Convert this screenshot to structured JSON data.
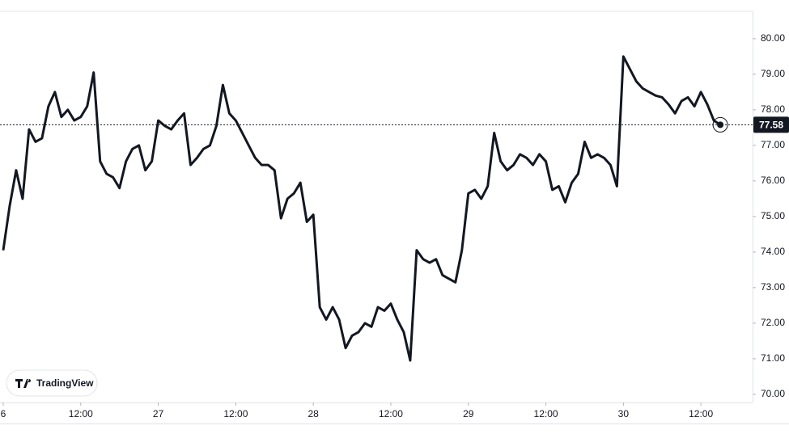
{
  "chart_data": {
    "type": "line",
    "x": [
      0,
      1,
      2,
      3,
      4,
      5,
      6,
      7,
      8,
      9,
      10,
      11,
      12,
      13,
      14,
      15,
      16,
      17,
      18,
      19,
      20,
      21,
      22,
      23,
      24,
      25,
      26,
      27,
      28,
      29,
      30,
      31,
      32,
      33,
      34,
      35,
      36,
      37,
      38,
      39,
      40,
      41,
      42,
      43,
      44,
      45,
      46,
      47,
      48,
      49,
      50,
      51,
      52,
      53,
      54,
      55,
      56,
      57,
      58,
      59,
      60,
      61,
      62,
      63,
      64,
      65,
      66,
      67,
      68,
      69,
      70,
      71,
      72,
      73,
      74,
      75,
      76,
      77,
      78,
      79,
      80,
      81,
      82,
      83,
      84,
      85,
      86,
      87,
      88,
      89,
      90,
      91,
      92,
      93,
      94,
      95,
      96,
      97,
      98,
      99,
      100,
      101,
      102,
      103,
      104,
      105,
      106,
      107,
      108,
      109,
      110,
      111
    ],
    "series": [
      {
        "color": "#131722",
        "values": [
          74.05,
          75.3,
          76.3,
          75.5,
          77.45,
          77.1,
          77.2,
          78.1,
          78.5,
          77.8,
          78.0,
          77.7,
          77.8,
          78.1,
          79.05,
          76.55,
          76.2,
          76.1,
          75.8,
          76.55,
          76.9,
          77.0,
          76.3,
          76.55,
          77.7,
          77.55,
          77.45,
          77.7,
          77.9,
          76.45,
          76.65,
          76.9,
          77.0,
          77.55,
          78.7,
          77.9,
          77.7,
          77.35,
          77.0,
          76.65,
          76.45,
          76.45,
          76.3,
          74.95,
          75.5,
          75.65,
          75.95,
          74.85,
          75.05,
          72.45,
          72.1,
          72.45,
          72.1,
          71.3,
          71.65,
          71.75,
          72.0,
          71.9,
          72.45,
          72.35,
          72.55,
          72.1,
          71.75,
          70.95,
          74.05,
          73.8,
          73.7,
          73.8,
          73.35,
          73.25,
          73.15,
          74.05,
          75.65,
          75.75,
          75.5,
          75.85,
          77.35,
          76.55,
          76.3,
          76.45,
          76.75,
          76.65,
          76.45,
          76.75,
          76.55,
          75.75,
          75.85,
          75.4,
          75.95,
          76.2,
          77.1,
          76.65,
          76.75,
          76.65,
          76.45,
          75.85,
          79.5,
          79.15,
          78.8,
          78.6,
          78.5,
          78.4,
          78.35,
          78.15,
          77.9,
          78.25,
          78.35,
          78.1,
          78.5,
          78.15,
          77.7,
          77.58
        ]
      }
    ],
    "xlim": [
      -0.5,
      116
    ],
    "xticks": [
      {
        "value": 0,
        "label": "6"
      },
      {
        "value": 12,
        "label": "12:00"
      },
      {
        "value": 24,
        "label": "27"
      },
      {
        "value": 36,
        "label": "12:00"
      },
      {
        "value": 48,
        "label": "28"
      },
      {
        "value": 60,
        "label": "12:00"
      },
      {
        "value": 72,
        "label": "29"
      },
      {
        "value": 84,
        "label": "12:00"
      },
      {
        "value": 96,
        "label": "30"
      },
      {
        "value": 108,
        "label": "12:00"
      }
    ],
    "ylim": [
      69.77,
      80.77
    ],
    "yticks": [
      {
        "value": 70,
        "label": "70.00"
      },
      {
        "value": 71,
        "label": "71.00"
      },
      {
        "value": 72,
        "label": "72.00"
      },
      {
        "value": 73,
        "label": "73.00"
      },
      {
        "value": 74,
        "label": "74.00"
      },
      {
        "value": 75,
        "label": "75.00"
      },
      {
        "value": 76,
        "label": "76.00"
      },
      {
        "value": 77,
        "label": "77.00"
      },
      {
        "value": 78,
        "label": "78.00"
      },
      {
        "value": 79,
        "label": "79.00"
      },
      {
        "value": 80,
        "label": "80.00"
      }
    ],
    "last_price": 77.58,
    "watermark": "TradingView"
  }
}
